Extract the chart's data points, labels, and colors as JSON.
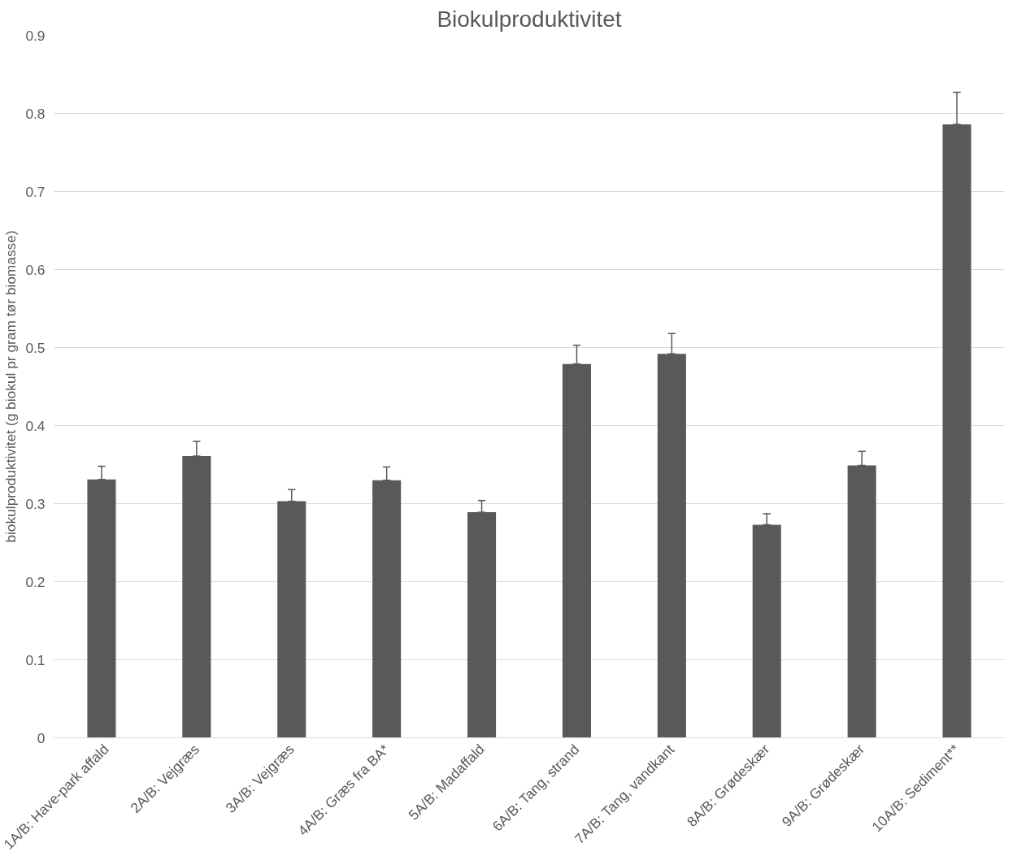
{
  "chart_data": {
    "type": "bar",
    "title": "Biokulproduktivitet",
    "ylabel": "biokulproduktivitet (g biokul pr gram tør biomasse)",
    "categories": [
      "1A/B: Have-park affald",
      "2A/B: Vejgræs",
      "3A/B: Vejgræs",
      "4A/B: Græs fra BA*",
      "5A/B: Madaffald",
      "6A/B: Tang, strand",
      "7A/B: Tang, vandkant",
      "8A/B: Grødeskær",
      "9A/B: Grødeskær",
      "10A/B: Sediment**"
    ],
    "values": [
      0.331,
      0.361,
      0.303,
      0.33,
      0.289,
      0.479,
      0.492,
      0.273,
      0.349,
      0.786
    ],
    "errors": [
      [
        0.331,
        0.348
      ],
      [
        0.361,
        0.38
      ],
      [
        0.303,
        0.318
      ],
      [
        0.33,
        0.347
      ],
      [
        0.289,
        0.304
      ],
      [
        0.479,
        0.503
      ],
      [
        0.492,
        0.518
      ],
      [
        0.273,
        0.287
      ],
      [
        0.349,
        0.367
      ],
      [
        0.786,
        0.827
      ]
    ],
    "color": "#595959",
    "ylim": [
      0,
      0.9
    ],
    "yticks": [
      0,
      0.1,
      0.2,
      0.3,
      0.4,
      0.5,
      0.6,
      0.7,
      0.8,
      0.9
    ],
    "grid": "y"
  }
}
